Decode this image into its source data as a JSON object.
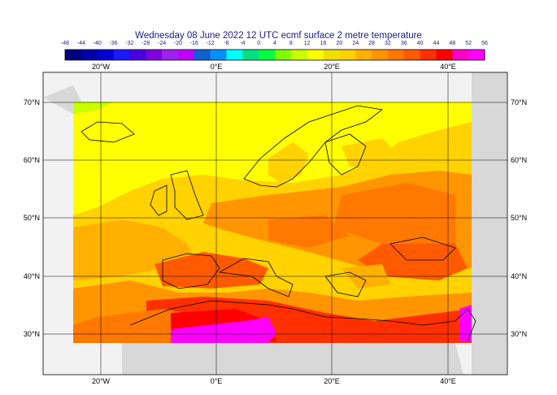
{
  "title": "Wednesday 08 June 2022 12 UTC ecmf surface  2 metre temperature",
  "legend": {
    "ticks": [
      "-48",
      "-44",
      "-40",
      "-36",
      "-32",
      "-28",
      "-24",
      "-20",
      "-16",
      "-12",
      "-8",
      "-4",
      "0",
      "4",
      "8",
      "12",
      "16",
      "20",
      "24",
      "28",
      "32",
      "36",
      "40",
      "44",
      "48",
      "52",
      "56"
    ],
    "colors": [
      "#000080",
      "#0000a8",
      "#0000d0",
      "#1a1aff",
      "#4a00e0",
      "#8000e0",
      "#a020f0",
      "#c000ff",
      "#1060d0",
      "#0090ff",
      "#00ffff",
      "#00e080",
      "#00ff40",
      "#80ff00",
      "#c8ff00",
      "#ffff00",
      "#f0e000",
      "#ffd200",
      "#ffb000",
      "#ff9500",
      "#ff7800",
      "#ff5a00",
      "#ff3000",
      "#ff0000",
      "#ff00c8",
      "#ff00ff"
    ]
  },
  "lon_labels": [
    "20°W",
    "0°E",
    "20°E",
    "40°E"
  ],
  "lat_labels": [
    "70°N",
    "60°N",
    "50°N",
    "40°N",
    "30°N"
  ],
  "colors": {
    "ocean_bg": "#f2f2f2",
    "land_bg": "#d8d8d8",
    "coast": "#000000",
    "grid": "#000000"
  }
}
